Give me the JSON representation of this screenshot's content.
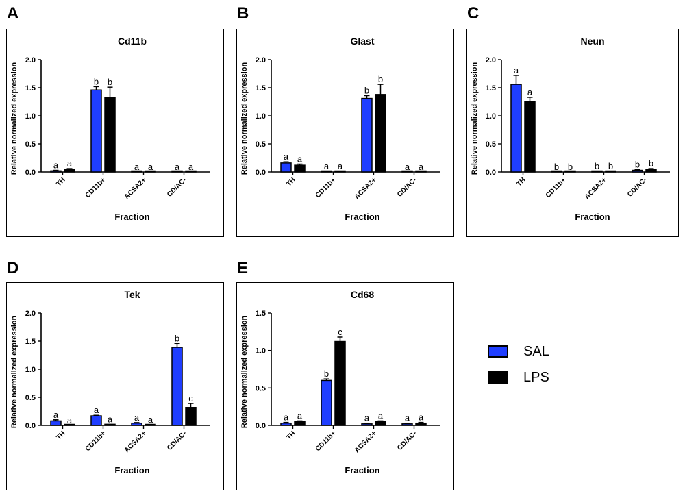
{
  "legend": {
    "items": [
      {
        "label": "SAL",
        "color": "#1f3eff"
      },
      {
        "label": "LPS",
        "color": "#000000"
      }
    ]
  },
  "chart_data": [
    {
      "panel": "A",
      "type": "bar",
      "title": "Cd11b",
      "xlabel": "Fraction",
      "ylabel": "Relative normalized expression",
      "ylim": [
        0,
        2.0
      ],
      "yticks": [
        "0.0",
        "0.5",
        "1.0",
        "1.5",
        "2.0"
      ],
      "categories": [
        "TH",
        "CD11b+",
        "ACSA2+",
        "CD/AC-"
      ],
      "series": [
        {
          "name": "SAL",
          "color": "#1f3eff",
          "values": [
            0.02,
            1.46,
            0.0,
            0.0
          ],
          "errors": [
            0.01,
            0.06,
            0.0,
            0.0
          ],
          "letters": [
            "a",
            "b",
            "a",
            "a"
          ]
        },
        {
          "name": "LPS",
          "color": "#000000",
          "values": [
            0.04,
            1.33,
            0.0,
            0.0
          ],
          "errors": [
            0.02,
            0.18,
            0.0,
            0.0
          ],
          "letters": [
            "a",
            "b",
            "a",
            "a"
          ]
        }
      ]
    },
    {
      "panel": "B",
      "type": "bar",
      "title": "Glast",
      "xlabel": "Fraction",
      "ylabel": "Relative normalized expression",
      "ylim": [
        0,
        2.0
      ],
      "yticks": [
        "0.0",
        "0.5",
        "1.0",
        "1.5",
        "2.0"
      ],
      "categories": [
        "TH",
        "CD11b+",
        "ACSA2+",
        "CD/AC-"
      ],
      "series": [
        {
          "name": "SAL",
          "color": "#1f3eff",
          "values": [
            0.16,
            0.01,
            1.31,
            0.0
          ],
          "errors": [
            0.02,
            0.0,
            0.05,
            0.0
          ],
          "letters": [
            "a",
            "a",
            "b",
            "a"
          ]
        },
        {
          "name": "LPS",
          "color": "#000000",
          "values": [
            0.12,
            0.01,
            1.38,
            0.0
          ],
          "errors": [
            0.02,
            0.0,
            0.18,
            0.0
          ],
          "letters": [
            "a",
            "a",
            "b",
            "a"
          ]
        }
      ]
    },
    {
      "panel": "C",
      "type": "bar",
      "title": "Neun",
      "xlabel": "Fraction",
      "ylabel": "Relative normalized expression",
      "ylim": [
        0,
        2.0
      ],
      "yticks": [
        "0.0",
        "0.5",
        "1.0",
        "1.5",
        "2.0"
      ],
      "categories": [
        "TH",
        "CD11b+",
        "ACSA2+",
        "CD/AC-"
      ],
      "series": [
        {
          "name": "SAL",
          "color": "#1f3eff",
          "values": [
            1.56,
            0.0,
            0.01,
            0.03
          ],
          "errors": [
            0.16,
            0.0,
            0.0,
            0.01
          ],
          "letters": [
            "a",
            "b",
            "b",
            "b"
          ]
        },
        {
          "name": "LPS",
          "color": "#000000",
          "values": [
            1.25,
            0.0,
            0.01,
            0.04
          ],
          "errors": [
            0.08,
            0.0,
            0.0,
            0.02
          ],
          "letters": [
            "a",
            "b",
            "b",
            "b"
          ]
        }
      ]
    },
    {
      "panel": "D",
      "type": "bar",
      "title": "Tek",
      "xlabel": "Fraction",
      "ylabel": "Relative normalized expression",
      "ylim": [
        0,
        2.0
      ],
      "yticks": [
        "0.0",
        "0.5",
        "1.0",
        "1.5",
        "2.0"
      ],
      "categories": [
        "TH",
        "CD11b+",
        "ACSA2+",
        "CD/AC-"
      ],
      "series": [
        {
          "name": "SAL",
          "color": "#1f3eff",
          "values": [
            0.08,
            0.17,
            0.04,
            1.39
          ],
          "errors": [
            0.02,
            0.01,
            0.01,
            0.07
          ],
          "letters": [
            "a",
            "a",
            "a",
            "b"
          ]
        },
        {
          "name": "LPS",
          "color": "#000000",
          "values": [
            0.0,
            0.02,
            0.01,
            0.32
          ],
          "errors": [
            0.0,
            0.0,
            0.0,
            0.07
          ],
          "letters": [
            "a",
            "a",
            "a",
            "c"
          ]
        }
      ]
    },
    {
      "panel": "E",
      "type": "bar",
      "title": "Cd68",
      "xlabel": "Fraction",
      "ylabel": "Relative normalized expression",
      "ylim": [
        0,
        1.5
      ],
      "yticks": [
        "0.0",
        "0.5",
        "1.0",
        "1.5"
      ],
      "categories": [
        "TH",
        "CD11b+",
        "ACSA2+",
        "CD/AC-"
      ],
      "series": [
        {
          "name": "SAL",
          "color": "#1f3eff",
          "values": [
            0.03,
            0.6,
            0.02,
            0.02
          ],
          "errors": [
            0.01,
            0.02,
            0.01,
            0.01
          ],
          "letters": [
            "a",
            "b",
            "a",
            "a"
          ]
        },
        {
          "name": "LPS",
          "color": "#000000",
          "values": [
            0.05,
            1.12,
            0.05,
            0.03
          ],
          "errors": [
            0.01,
            0.06,
            0.01,
            0.01
          ],
          "letters": [
            "a",
            "c",
            "a",
            "a"
          ]
        }
      ]
    }
  ]
}
